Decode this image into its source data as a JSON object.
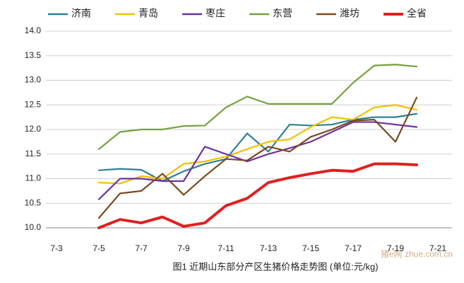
{
  "chart_data": {
    "type": "line",
    "title": "图1  近期山东部分产区生猪价格走势图  (单位:元/kg)",
    "watermark": "猪e网 zhue.com.cn",
    "categories": [
      "7-3",
      null,
      "7-5",
      null,
      "7-7",
      null,
      "7-9",
      null,
      "7-11",
      null,
      "7-13",
      null,
      "7-15",
      null,
      "7-17",
      null,
      "7-19",
      null,
      "7-21"
    ],
    "series": [
      {
        "name": "济南",
        "color": "#2e7f9a",
        "values": [
          null,
          null,
          11.17,
          11.2,
          11.18,
          10.95,
          11.15,
          11.3,
          11.4,
          11.92,
          11.55,
          12.1,
          12.08,
          12.1,
          12.2,
          12.25,
          12.25,
          12.32,
          null
        ]
      },
      {
        "name": "青岛",
        "color": "#f0c000",
        "values": [
          null,
          null,
          10.92,
          10.9,
          11.05,
          11.0,
          11.3,
          11.35,
          11.45,
          11.6,
          11.75,
          11.8,
          12.05,
          12.25,
          12.2,
          12.45,
          12.5,
          12.4,
          null
        ]
      },
      {
        "name": "枣庄",
        "color": "#7030a0",
        "values": [
          null,
          null,
          10.58,
          11.0,
          11.0,
          10.95,
          10.95,
          11.65,
          11.5,
          11.35,
          11.5,
          11.62,
          11.75,
          11.95,
          12.15,
          12.15,
          12.1,
          12.05,
          null
        ]
      },
      {
        "name": "东营",
        "color": "#77a040",
        "values": [
          null,
          null,
          11.6,
          11.95,
          12.0,
          12.0,
          12.07,
          12.08,
          12.45,
          12.67,
          12.52,
          12.52,
          12.52,
          12.52,
          12.95,
          13.3,
          13.32,
          13.28,
          null
        ]
      },
      {
        "name": "潍坊",
        "color": "#7b4a1e",
        "values": [
          null,
          null,
          10.2,
          10.7,
          10.75,
          11.1,
          10.67,
          11.05,
          11.4,
          11.37,
          11.65,
          11.55,
          11.85,
          12.0,
          12.18,
          12.2,
          11.75,
          12.65,
          null
        ]
      },
      {
        "name": "全省",
        "color": "#e02020",
        "values": [
          null,
          null,
          10.0,
          10.17,
          10.1,
          10.22,
          10.03,
          10.1,
          10.45,
          10.6,
          10.92,
          11.02,
          11.1,
          11.17,
          11.15,
          11.3,
          11.3,
          11.28,
          null
        ]
      }
    ],
    "ylim": [
      10,
      14
    ],
    "yticks": [
      {
        "value": 10,
        "label": "10.0"
      },
      10.5,
      {
        "value": 11,
        "label": "11.0"
      },
      11.5,
      {
        "value": 12,
        "label": "12.0"
      },
      12.5,
      {
        "value": 13,
        "label": "13.0"
      },
      13.5,
      {
        "value": 14,
        "label": "14.0"
      }
    ],
    "grid": true
  }
}
